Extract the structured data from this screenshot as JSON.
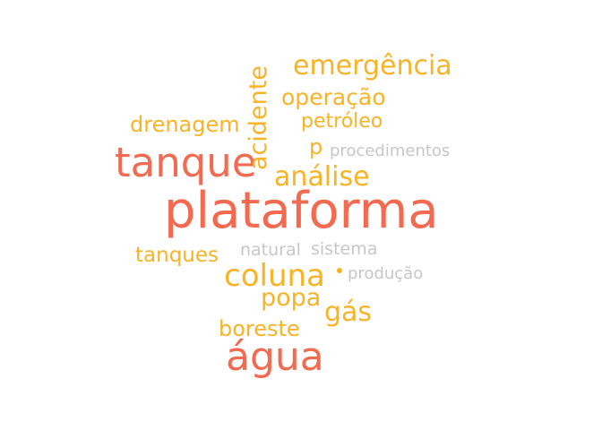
{
  "colors": {
    "red": "#F26B50",
    "orange": "#F8B327",
    "gray": "#C7C7C7"
  },
  "words": [
    {
      "id": "plataforma",
      "text": "plataforma",
      "color": "red"
    },
    {
      "id": "tanque",
      "text": "tanque",
      "color": "red"
    },
    {
      "id": "agua",
      "text": "água",
      "color": "red"
    },
    {
      "id": "emergencia",
      "text": "emergência",
      "color": "orange"
    },
    {
      "id": "operacao",
      "text": "operação",
      "color": "orange"
    },
    {
      "id": "petroleo",
      "text": "petróleo",
      "color": "orange"
    },
    {
      "id": "drenagem",
      "text": "drenagem",
      "color": "orange"
    },
    {
      "id": "acidente",
      "text": "acidente",
      "color": "orange"
    },
    {
      "id": "p",
      "text": "p",
      "color": "orange"
    },
    {
      "id": "analise",
      "text": "análise",
      "color": "orange"
    },
    {
      "id": "coluna",
      "text": "coluna",
      "color": "orange"
    },
    {
      "id": "tanques",
      "text": "tanques",
      "color": "orange"
    },
    {
      "id": "popa",
      "text": "popa",
      "color": "orange"
    },
    {
      "id": "gas",
      "text": "gás",
      "color": "orange"
    },
    {
      "id": "boreste",
      "text": "boreste",
      "color": "orange"
    },
    {
      "id": "procedimentos",
      "text": "procedimentos",
      "color": "gray"
    },
    {
      "id": "natural",
      "text": "natural",
      "color": "gray"
    },
    {
      "id": "sistema",
      "text": "sistema",
      "color": "gray"
    },
    {
      "id": "producao",
      "text": "produção",
      "color": "gray"
    }
  ],
  "marks": [
    {
      "id": "dot",
      "color": "orange"
    }
  ]
}
